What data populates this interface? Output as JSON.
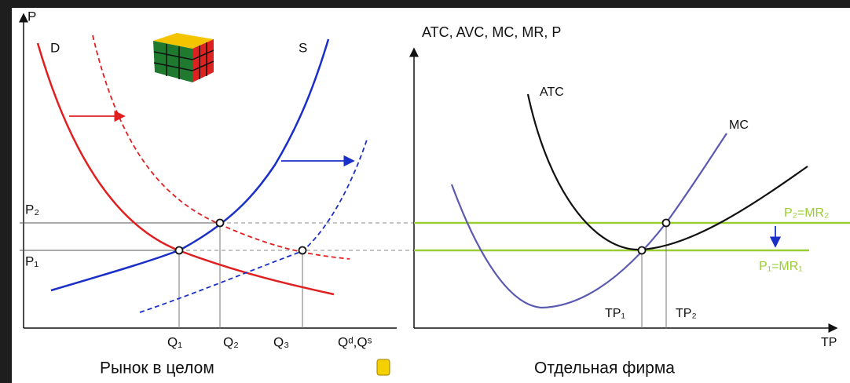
{
  "left_panel": {
    "y_axis_label": "P",
    "demand_label": "D",
    "supply_label": "S",
    "price_labels": [
      "P₂",
      "P₁"
    ],
    "quantity_labels": [
      "Q₁",
      "Q₂",
      "Q₃"
    ],
    "x_axis_label": "Qᵈ,Qˢ",
    "caption": "Рынок в целом"
  },
  "right_panel": {
    "y_axis_label": "ATC, AVC, MC, MR, P",
    "atc_label": "ATC",
    "mc_label": "MC",
    "mr_labels": [
      "P₂=MR₂",
      "P₁=MR₁"
    ],
    "quantity_labels": [
      "TP₁",
      "TP₂"
    ],
    "x_axis_label": "TP",
    "caption": "Отдельная фирма"
  }
}
